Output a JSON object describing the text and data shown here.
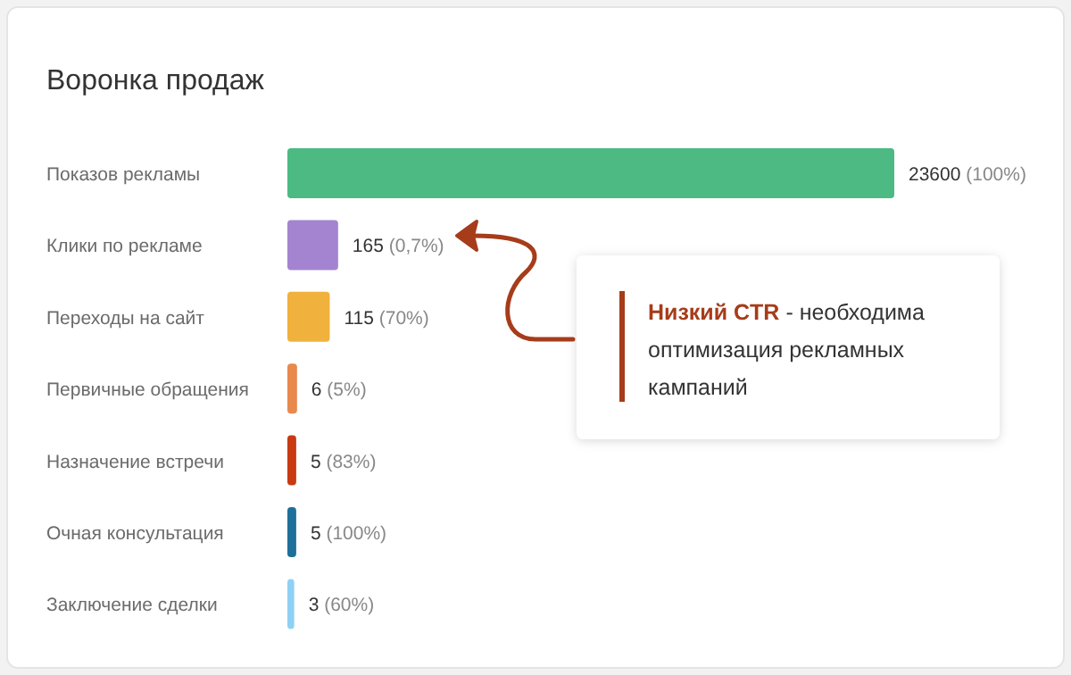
{
  "chart_data": {
    "type": "other",
    "title": "Воронка продаж",
    "categories": [
      "Показов рекламы",
      "Клики по рекламе",
      "Переходы на сайт",
      "Первичные обращения",
      "Назначение встречи",
      "Очная консультация",
      "Заключение сделки"
    ],
    "values": [
      23600,
      165,
      115,
      6,
      5,
      5,
      3
    ],
    "value_labels": [
      "23600 (100%)",
      "165 (0,7%)",
      "115 (70%)",
      "6 (5%)",
      "5 (83%)",
      "5 (100%)",
      "3 (60%)"
    ],
    "colors": [
      "#4cba82",
      "#a484d0",
      "#f0b23c",
      "#e8894e",
      "#c83a12",
      "#1e6f9a",
      "#8fd0f5"
    ],
    "annotations": [
      "Низкий CTR - необходима оптимизация рекламных кампаний"
    ]
  }
}
